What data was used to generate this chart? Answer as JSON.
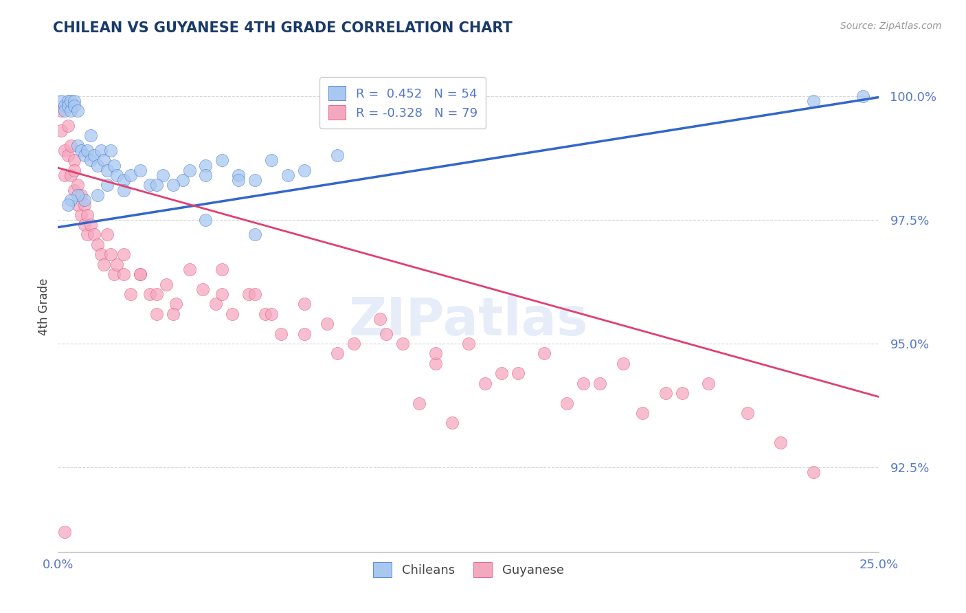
{
  "title": "CHILEAN VS GUYANESE 4TH GRADE CORRELATION CHART",
  "source_text": "Source: ZipAtlas.com",
  "ylabel": "4th Grade",
  "xlim": [
    0.0,
    0.25
  ],
  "ylim": [
    0.908,
    1.007
  ],
  "yticks": [
    0.925,
    0.95,
    0.975,
    1.0
  ],
  "xticks": [
    0.0,
    0.05,
    0.1,
    0.15,
    0.2,
    0.25
  ],
  "xtick_labels": [
    "0.0%",
    "",
    "",
    "",
    "",
    "25.0%"
  ],
  "chilean_color": "#A8C8F0",
  "guyanese_color": "#F4A8C0",
  "blue_line_color": "#3366CC",
  "pink_line_color": "#E04070",
  "title_color": "#1A3A6A",
  "axis_label_color": "#444444",
  "tick_color": "#5577CC",
  "grid_color": "#CCCCCC",
  "chileans_label": "Chileans",
  "guyanese_label": "Guyanese",
  "blue_R": 0.452,
  "blue_N": 54,
  "pink_R": -0.328,
  "pink_N": 79,
  "blue_intercept": 0.9735,
  "blue_slope": 0.105,
  "pink_intercept": 0.9855,
  "pink_slope": -0.185,
  "chilean_x": [
    0.001,
    0.002,
    0.002,
    0.003,
    0.003,
    0.004,
    0.004,
    0.005,
    0.005,
    0.006,
    0.006,
    0.007,
    0.008,
    0.009,
    0.01,
    0.01,
    0.011,
    0.012,
    0.013,
    0.014,
    0.015,
    0.016,
    0.017,
    0.018,
    0.02,
    0.022,
    0.025,
    0.028,
    0.032,
    0.038,
    0.045,
    0.055,
    0.065,
    0.075,
    0.085,
    0.06,
    0.07,
    0.05,
    0.04,
    0.035,
    0.045,
    0.055,
    0.03,
    0.02,
    0.015,
    0.012,
    0.008,
    0.006,
    0.004,
    0.003,
    0.045,
    0.06,
    0.23,
    0.245
  ],
  "chilean_y": [
    0.999,
    0.998,
    0.997,
    0.999,
    0.998,
    0.997,
    0.999,
    0.999,
    0.998,
    0.997,
    0.99,
    0.989,
    0.988,
    0.989,
    0.987,
    0.992,
    0.988,
    0.986,
    0.989,
    0.987,
    0.985,
    0.989,
    0.986,
    0.984,
    0.983,
    0.984,
    0.985,
    0.982,
    0.984,
    0.983,
    0.986,
    0.984,
    0.987,
    0.985,
    0.988,
    0.983,
    0.984,
    0.987,
    0.985,
    0.982,
    0.984,
    0.983,
    0.982,
    0.981,
    0.982,
    0.98,
    0.979,
    0.98,
    0.979,
    0.978,
    0.975,
    0.972,
    0.999,
    1.0
  ],
  "guyanese_x": [
    0.001,
    0.001,
    0.002,
    0.002,
    0.003,
    0.003,
    0.004,
    0.004,
    0.005,
    0.005,
    0.005,
    0.006,
    0.006,
    0.007,
    0.007,
    0.008,
    0.008,
    0.009,
    0.009,
    0.01,
    0.011,
    0.012,
    0.013,
    0.014,
    0.015,
    0.016,
    0.017,
    0.018,
    0.02,
    0.022,
    0.025,
    0.028,
    0.03,
    0.033,
    0.036,
    0.04,
    0.044,
    0.048,
    0.05,
    0.053,
    0.058,
    0.063,
    0.068,
    0.075,
    0.082,
    0.09,
    0.098,
    0.105,
    0.115,
    0.125,
    0.135,
    0.148,
    0.16,
    0.172,
    0.185,
    0.198,
    0.05,
    0.06,
    0.065,
    0.075,
    0.085,
    0.11,
    0.12,
    0.14,
    0.155,
    0.165,
    0.178,
    0.19,
    0.02,
    0.025,
    0.03,
    0.035,
    0.1,
    0.115,
    0.13,
    0.21,
    0.22,
    0.23,
    0.002
  ],
  "guyanese_y": [
    0.997,
    0.993,
    0.989,
    0.984,
    0.994,
    0.988,
    0.984,
    0.99,
    0.987,
    0.981,
    0.985,
    0.982,
    0.978,
    0.98,
    0.976,
    0.978,
    0.974,
    0.976,
    0.972,
    0.974,
    0.972,
    0.97,
    0.968,
    0.966,
    0.972,
    0.968,
    0.964,
    0.966,
    0.964,
    0.96,
    0.964,
    0.96,
    0.956,
    0.962,
    0.958,
    0.965,
    0.961,
    0.958,
    0.96,
    0.956,
    0.96,
    0.956,
    0.952,
    0.958,
    0.954,
    0.95,
    0.955,
    0.95,
    0.946,
    0.95,
    0.944,
    0.948,
    0.942,
    0.946,
    0.94,
    0.942,
    0.965,
    0.96,
    0.956,
    0.952,
    0.948,
    0.938,
    0.934,
    0.944,
    0.938,
    0.942,
    0.936,
    0.94,
    0.968,
    0.964,
    0.96,
    0.956,
    0.952,
    0.948,
    0.942,
    0.936,
    0.93,
    0.924,
    0.912
  ]
}
